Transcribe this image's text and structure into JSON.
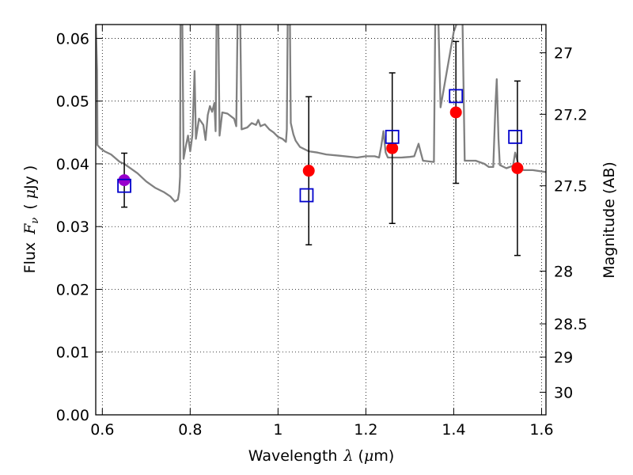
{
  "chart_data": {
    "type": "scatter",
    "xlabel": {
      "prefix": "Wavelength",
      "symbol": "λ",
      "unit_open": "(",
      "unit_mu": "μ",
      "unit_rest": "m)"
    },
    "ylabel": {
      "prefix": "Flux",
      "symbol": "F",
      "subscript": "ν",
      "unit_open": "(",
      "unit_mu": "μ",
      "unit_rest": "Jy",
      "unit_close": ")"
    },
    "y2label": "Magnitude (AB)",
    "xlim": [
      0.585,
      1.61
    ],
    "ylim": [
      0.0,
      0.0622
    ],
    "xticks": [
      0.6,
      0.8,
      1.0,
      1.2,
      1.4,
      1.6
    ],
    "xtick_labels": [
      "0.6",
      "0.8",
      "1",
      "1.2",
      "1.4",
      "1.6"
    ],
    "yticks": [
      0.0,
      0.01,
      0.02,
      0.03,
      0.04,
      0.05,
      0.06
    ],
    "ytick_labels": [
      "0.00",
      "0.01",
      "0.02",
      "0.03",
      "0.04",
      "0.05",
      "0.06"
    ],
    "y2ticks": [
      {
        "flux": 0.0577,
        "label": "27"
      },
      {
        "flux": 0.0479,
        "label": "27.2"
      },
      {
        "flux": 0.0365,
        "label": "27.5"
      },
      {
        "flux": 0.0229,
        "label": "28"
      },
      {
        "flux": 0.0145,
        "label": "28.5"
      },
      {
        "flux": 0.0092,
        "label": "29"
      },
      {
        "flux": 0.0036,
        "label": "30"
      }
    ],
    "grid": true,
    "colors": {
      "model": "#808080",
      "observed": "#ff0000",
      "model_band": "#0000cc",
      "overlap": "#9900cc",
      "errorbar": "#000000"
    },
    "series": [
      {
        "kind": "line",
        "points": [
          [
            0.585,
            0.063
          ],
          [
            0.588,
            0.055
          ],
          [
            0.589,
            0.043
          ],
          [
            0.595,
            0.0425
          ],
          [
            0.605,
            0.042
          ],
          [
            0.62,
            0.0415
          ],
          [
            0.64,
            0.0403
          ],
          [
            0.65,
            0.04
          ],
          [
            0.66,
            0.0395
          ],
          [
            0.68,
            0.0385
          ],
          [
            0.7,
            0.0372
          ],
          [
            0.72,
            0.0362
          ],
          [
            0.74,
            0.0355
          ],
          [
            0.755,
            0.0348
          ],
          [
            0.765,
            0.034
          ],
          [
            0.772,
            0.0343
          ],
          [
            0.775,
            0.0355
          ],
          [
            0.777,
            0.038
          ],
          [
            0.778,
            0.063
          ],
          [
            0.782,
            0.063
          ],
          [
            0.785,
            0.0408
          ],
          [
            0.79,
            0.0428
          ],
          [
            0.795,
            0.0445
          ],
          [
            0.8,
            0.042
          ],
          [
            0.805,
            0.0445
          ],
          [
            0.81,
            0.0548
          ],
          [
            0.813,
            0.044
          ],
          [
            0.82,
            0.0472
          ],
          [
            0.83,
            0.0462
          ],
          [
            0.835,
            0.0438
          ],
          [
            0.84,
            0.0478
          ],
          [
            0.845,
            0.0492
          ],
          [
            0.85,
            0.0483
          ],
          [
            0.855,
            0.0497
          ],
          [
            0.858,
            0.0452
          ],
          [
            0.86,
            0.063
          ],
          [
            0.864,
            0.063
          ],
          [
            0.867,
            0.0445
          ],
          [
            0.873,
            0.0482
          ],
          [
            0.885,
            0.048
          ],
          [
            0.9,
            0.0472
          ],
          [
            0.905,
            0.046
          ],
          [
            0.908,
            0.063
          ],
          [
            0.914,
            0.063
          ],
          [
            0.917,
            0.0455
          ],
          [
            0.93,
            0.0458
          ],
          [
            0.94,
            0.0465
          ],
          [
            0.95,
            0.0462
          ],
          [
            0.955,
            0.047
          ],
          [
            0.96,
            0.046
          ],
          [
            0.97,
            0.0463
          ],
          [
            0.98,
            0.0455
          ],
          [
            0.99,
            0.045
          ],
          [
            1.0,
            0.0443
          ],
          [
            1.01,
            0.044
          ],
          [
            1.018,
            0.0435
          ],
          [
            1.02,
            0.0455
          ],
          [
            1.022,
            0.063
          ],
          [
            1.027,
            0.063
          ],
          [
            1.029,
            0.0465
          ],
          [
            1.035,
            0.0447
          ],
          [
            1.04,
            0.0437
          ],
          [
            1.05,
            0.0427
          ],
          [
            1.07,
            0.042
          ],
          [
            1.09,
            0.0418
          ],
          [
            1.11,
            0.0415
          ],
          [
            1.14,
            0.0413
          ],
          [
            1.18,
            0.041
          ],
          [
            1.2,
            0.0412
          ],
          [
            1.22,
            0.0412
          ],
          [
            1.23,
            0.041
          ],
          [
            1.235,
            0.0428
          ],
          [
            1.24,
            0.0452
          ],
          [
            1.245,
            0.0418
          ],
          [
            1.25,
            0.041
          ],
          [
            1.28,
            0.041
          ],
          [
            1.3,
            0.0411
          ],
          [
            1.31,
            0.0412
          ],
          [
            1.32,
            0.0432
          ],
          [
            1.325,
            0.0418
          ],
          [
            1.33,
            0.0405
          ],
          [
            1.355,
            0.0403
          ],
          [
            1.358,
            0.063
          ],
          [
            1.365,
            0.063
          ],
          [
            1.37,
            0.049
          ],
          [
            1.4,
            0.061
          ],
          [
            1.41,
            0.063
          ],
          [
            1.42,
            0.063
          ],
          [
            1.425,
            0.0405
          ],
          [
            1.45,
            0.0405
          ],
          [
            1.47,
            0.04
          ],
          [
            1.48,
            0.0395
          ],
          [
            1.49,
            0.0395
          ],
          [
            1.495,
            0.0495
          ],
          [
            1.498,
            0.0535
          ],
          [
            1.502,
            0.044
          ],
          [
            1.505,
            0.0398
          ],
          [
            1.52,
            0.0393
          ],
          [
            1.535,
            0.0397
          ],
          [
            1.54,
            0.0418
          ],
          [
            1.545,
            0.0405
          ],
          [
            1.55,
            0.0392
          ],
          [
            1.56,
            0.039
          ],
          [
            1.58,
            0.039
          ],
          [
            1.61,
            0.0387
          ]
        ]
      },
      {
        "kind": "observed_with_errors",
        "points": [
          {
            "x": 0.65,
            "y": 0.0374,
            "err": 0.0043,
            "overlap": true
          },
          {
            "x": 1.07,
            "y": 0.0389,
            "err": 0.0118
          },
          {
            "x": 1.26,
            "y": 0.0425,
            "err": 0.012
          },
          {
            "x": 1.405,
            "y": 0.0482,
            "err": 0.0113
          },
          {
            "x": 1.545,
            "y": 0.0393,
            "err": 0.0139
          }
        ]
      },
      {
        "kind": "model_squares",
        "points": [
          {
            "x": 0.65,
            "y": 0.0365
          },
          {
            "x": 1.065,
            "y": 0.035
          },
          {
            "x": 1.26,
            "y": 0.0443
          },
          {
            "x": 1.405,
            "y": 0.0508
          },
          {
            "x": 1.54,
            "y": 0.0443
          }
        ]
      }
    ]
  }
}
